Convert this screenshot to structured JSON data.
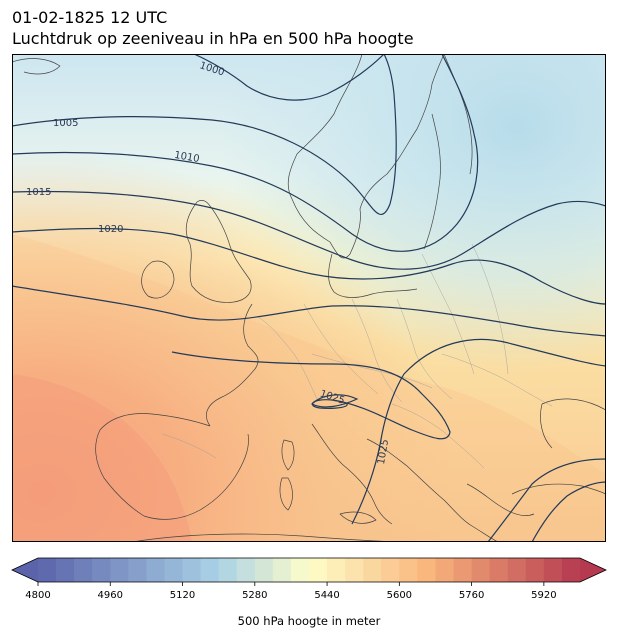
{
  "title": {
    "line1": "01-02-1825 12 UTC",
    "line2": "Luchtdruk op zeeniveau in hPa en 500 hPa hoogte"
  },
  "map": {
    "region": "Europe",
    "fill_field": "500 hPa geopotential height (m)",
    "contour_field": "mean sea level pressure (hPa)",
    "isobars": [
      {
        "label": "1000"
      },
      {
        "label": "1005"
      },
      {
        "label": "1010"
      },
      {
        "label": "1015"
      },
      {
        "label": "1020"
      },
      {
        "label": "1025"
      },
      {
        "label": "1025"
      }
    ]
  },
  "colorbar": {
    "label": "500 hPa hoogte in meter",
    "min": 4800,
    "max": 6000,
    "step": 40,
    "ticks": [
      "4800",
      "4960",
      "5120",
      "5280",
      "5440",
      "5600",
      "5760",
      "5920"
    ],
    "extend": "both",
    "colors": {
      "low": "#5b63aa",
      "mid_blue": "#a9d1e6",
      "mid_pale": "#fefdc9",
      "mid_orange": "#f9b57c",
      "high": "#b5394f"
    }
  }
}
